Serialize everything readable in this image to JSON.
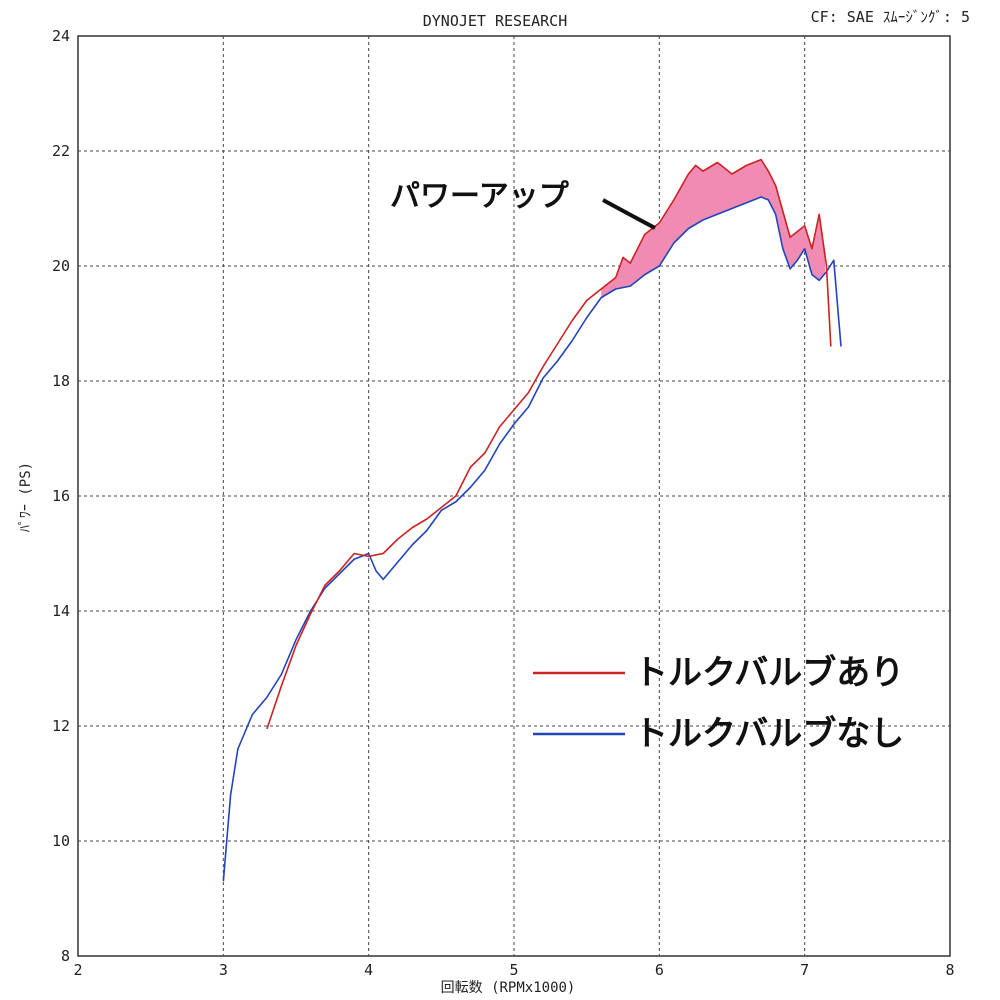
{
  "chart_data": {
    "type": "line",
    "title": "DYNOJET  RESEARCH",
    "header_right": "CF: SAE  ｽﾑｰｼﾞﾝｸﾞ: 5",
    "xlabel": "回転数 (RPMx1000)",
    "ylabel": "ﾊﾟﾜｰ (PS)",
    "xlim": [
      2,
      8
    ],
    "ylim": [
      8,
      24
    ],
    "x_ticks": [
      "2",
      "3",
      "4",
      "5",
      "6",
      "7",
      "8"
    ],
    "y_ticks": [
      "8",
      "10",
      "12",
      "14",
      "16",
      "18",
      "20",
      "22",
      "24"
    ],
    "grid": true,
    "legend_position": "right-middle",
    "annotation": "パワーアップ",
    "fill_color": "#f08cb4",
    "series": [
      {
        "name": "トルクバルブあり",
        "color": "#cc2222",
        "x": [
          3.3,
          3.4,
          3.5,
          3.6,
          3.7,
          3.8,
          3.9,
          4.0,
          4.1,
          4.2,
          4.3,
          4.4,
          4.5,
          4.6,
          4.7,
          4.8,
          4.9,
          5.0,
          5.1,
          5.2,
          5.3,
          5.4,
          5.5,
          5.6,
          5.7,
          5.75,
          5.8,
          5.9,
          6.0,
          6.1,
          6.2,
          6.25,
          6.3,
          6.4,
          6.5,
          6.6,
          6.7,
          6.75,
          6.8,
          6.9,
          7.0,
          7.05,
          7.1,
          7.15,
          7.18
        ],
        "y": [
          11.95,
          12.7,
          13.4,
          13.95,
          14.45,
          14.7,
          15.0,
          14.95,
          15.0,
          15.25,
          15.45,
          15.6,
          15.8,
          16.0,
          16.5,
          16.75,
          17.2,
          17.5,
          17.8,
          18.25,
          18.65,
          19.05,
          19.4,
          19.6,
          19.8,
          20.15,
          20.05,
          20.55,
          20.75,
          21.15,
          21.6,
          21.75,
          21.65,
          21.8,
          21.6,
          21.75,
          21.85,
          21.65,
          21.4,
          20.5,
          20.7,
          20.3,
          20.9,
          20.0,
          18.6
        ]
      },
      {
        "name": "トルクバルブなし",
        "color": "#2244bb",
        "x": [
          3.0,
          3.05,
          3.1,
          3.2,
          3.3,
          3.4,
          3.5,
          3.6,
          3.7,
          3.8,
          3.9,
          4.0,
          4.05,
          4.1,
          4.2,
          4.3,
          4.4,
          4.5,
          4.6,
          4.7,
          4.8,
          4.9,
          5.0,
          5.1,
          5.2,
          5.3,
          5.4,
          5.5,
          5.6,
          5.7,
          5.8,
          5.9,
          6.0,
          6.1,
          6.2,
          6.3,
          6.4,
          6.5,
          6.6,
          6.7,
          6.75,
          6.8,
          6.85,
          6.9,
          6.95,
          7.0,
          7.05,
          7.1,
          7.15,
          7.2,
          7.25
        ],
        "y": [
          9.3,
          10.8,
          11.6,
          12.2,
          12.5,
          12.9,
          13.5,
          14.0,
          14.4,
          14.65,
          14.9,
          15.0,
          14.7,
          14.55,
          14.85,
          15.15,
          15.4,
          15.75,
          15.9,
          16.15,
          16.45,
          16.9,
          17.25,
          17.55,
          18.05,
          18.35,
          18.7,
          19.1,
          19.45,
          19.6,
          19.65,
          19.85,
          20.0,
          20.4,
          20.65,
          20.8,
          20.9,
          21.0,
          21.1,
          21.2,
          21.15,
          20.9,
          20.3,
          19.95,
          20.1,
          20.3,
          19.85,
          19.75,
          19.9,
          20.1,
          18.6
        ]
      }
    ]
  }
}
